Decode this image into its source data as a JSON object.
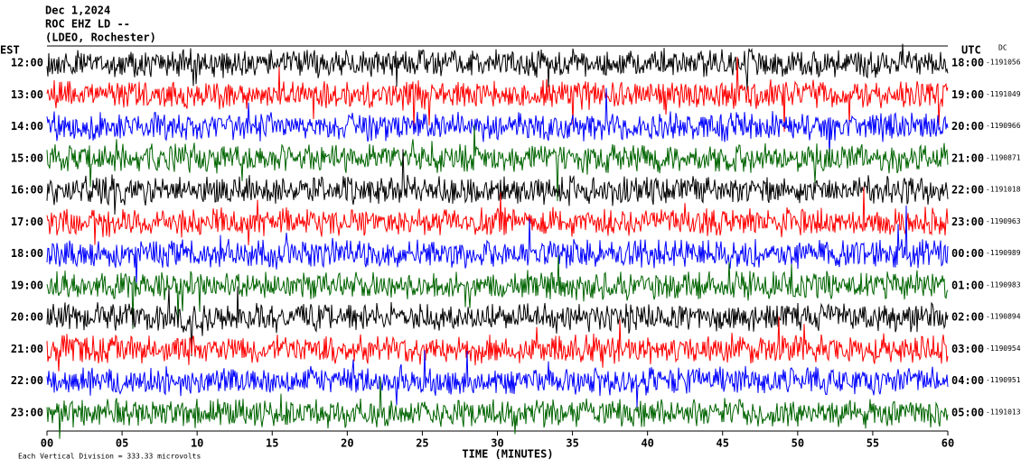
{
  "chart_data": {
    "type": "helicorder",
    "title_lines": [
      "Dec 1,2024",
      "ROC EHZ LD --",
      "(LDEO, Rochester)"
    ],
    "left_zone": "EST",
    "right_zone": "UTC",
    "offset_header": "DC",
    "rows": [
      {
        "left": "12:00",
        "right": "18:00",
        "offset": "-1191056"
      },
      {
        "left": "13:00",
        "right": "19:00",
        "offset": "-1191049"
      },
      {
        "left": "14:00",
        "right": "20:00",
        "offset": "-1190966"
      },
      {
        "left": "15:00",
        "right": "21:00",
        "offset": "-1190871"
      },
      {
        "left": "16:00",
        "right": "22:00",
        "offset": "-1191018"
      },
      {
        "left": "17:00",
        "right": "23:00",
        "offset": "-1190963"
      },
      {
        "left": "18:00",
        "right": "00:00",
        "offset": "-1190989"
      },
      {
        "left": "19:00",
        "right": "01:00",
        "offset": "-1190983"
      },
      {
        "left": "20:00",
        "right": "02:00",
        "offset": "-1190894"
      },
      {
        "left": "21:00",
        "right": "03:00",
        "offset": "-1190954"
      },
      {
        "left": "22:00",
        "right": "04:00",
        "offset": "-1190951"
      },
      {
        "left": "23:00",
        "right": "05:00",
        "offset": "-1191013"
      }
    ],
    "trace_colors": [
      "#000000",
      "#ff0000",
      "#0000ff",
      "#006400"
    ],
    "xlabel": "TIME (MINUTES)",
    "xlim": [
      0,
      60
    ],
    "xticks": [
      {
        "value": 0,
        "label": "00"
      },
      {
        "value": 5,
        "label": "05"
      },
      10,
      15,
      20,
      25,
      30,
      35,
      40,
      45,
      50,
      55,
      60
    ],
    "footnote": "Each Vertical Division =  333.33 microvolts"
  }
}
